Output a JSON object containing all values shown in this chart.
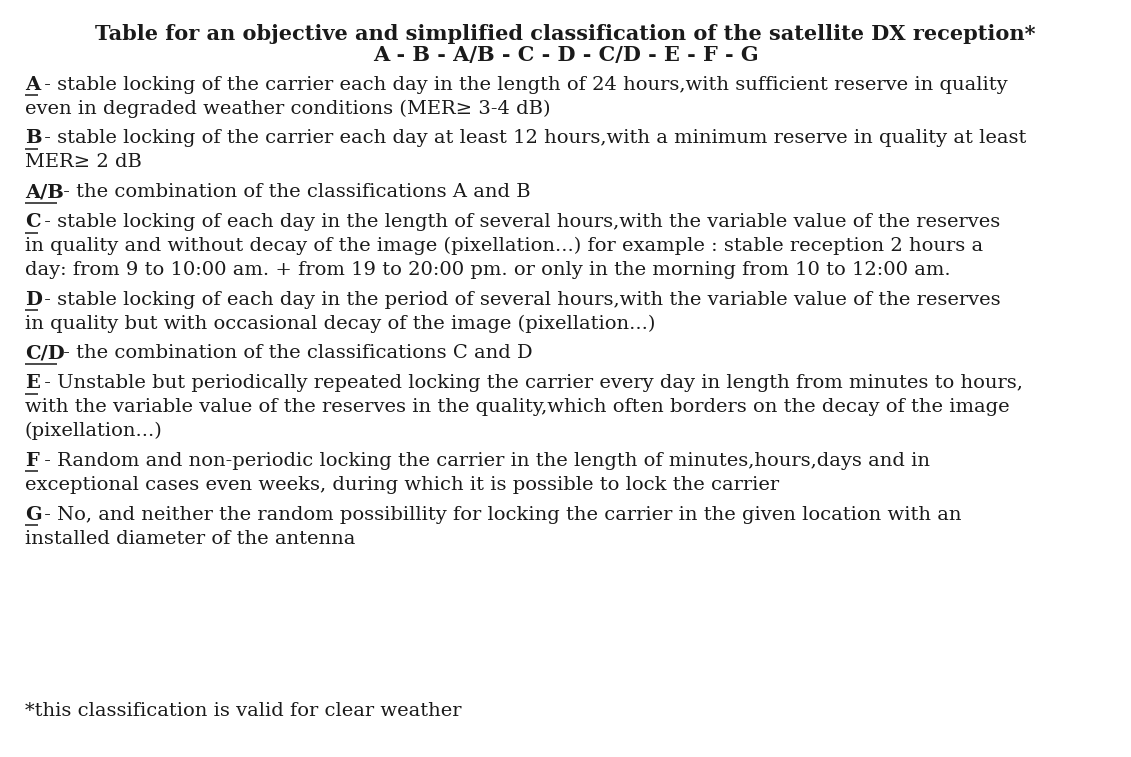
{
  "title_line1": "Table for an objective and simplified classification of the satellite DX reception*",
  "title_line2": "A - B - A/B - C - D - C/D - E - F - G",
  "background_color": "#ffffff",
  "text_color": "#1a1a1a",
  "font_size": 14,
  "title_font_size": 15,
  "figwidth": 11.31,
  "figheight": 7.57,
  "dpi": 100,
  "entries": [
    {
      "label": "A",
      "text": " - stable locking of the carrier each day in the length of 24 hours,with sufficient reserve in quality\neven in degraded weather conditions (MER≥ 3-4 dB)"
    },
    {
      "label": "B",
      "text": " - stable locking of the carrier each day at least 12 hours,with a minimum reserve in quality at least\nMER≥ 2 dB"
    },
    {
      "label": "A/B",
      "text": " - the combination of the classifications A and B"
    },
    {
      "label": "C",
      "text": " - stable locking of each day in the length of several hours,with the variable value of the reserves\nin quality and without decay of the image (pixellation...) for example : stable reception 2 hours a\nday: from 9 to 10:00 am. + from 19 to 20:00 pm. or only in the morning from 10 to 12:00 am."
    },
    {
      "label": "D",
      "text": " - stable locking of each day in the period of several hours,with the variable value of the reserves\nin quality but with occasional decay of the image (pixellation...)"
    },
    {
      "label": "C/D",
      "text": " - the combination of the classifications C and D"
    },
    {
      "label": "E",
      "text": " - Unstable but periodically repeated locking the carrier every day in length from minutes to hours,\nwith the variable value of the reserves in the quality,which often borders on the decay of the image\n(pixellation...)"
    },
    {
      "label": "F",
      "text": " - Random and non-periodic locking the carrier in the length of minutes,hours,days and in\nexceptional cases even weeks, during which it is possible to lock the carrier"
    },
    {
      "label": "G",
      "text": " - No, and neither the random possibillity for locking the carrier in the given location with an\ninstalled diameter of the antenna"
    }
  ],
  "footnote": "*this classification is valid for clear weather",
  "label_widths": {
    "A": 0.0115,
    "B": 0.0115,
    "A/B": 0.0285,
    "C": 0.0115,
    "D": 0.0115,
    "C/D": 0.0285,
    "E": 0.0115,
    "F": 0.0115,
    "G": 0.0115
  }
}
